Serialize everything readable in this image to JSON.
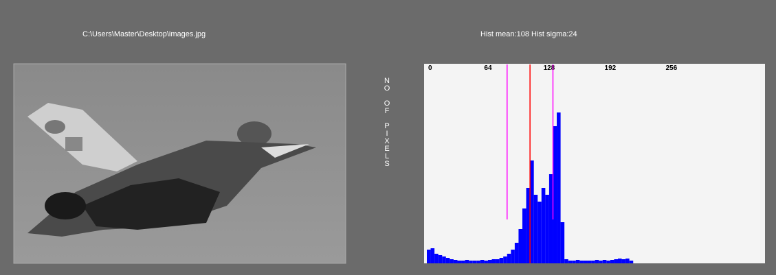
{
  "file_path": "C:\\Users\\Master\\Desktop\\images.jpg",
  "stats": {
    "mean_label": "Hist mean:",
    "mean": 108,
    "sigma_label": "Hist sigma:",
    "sigma": 24
  },
  "y_axis_label": "NO OF PIXELS",
  "histogram": {
    "type": "histogram",
    "xlim": [
      0,
      256
    ],
    "xticks": [
      0,
      64,
      128,
      192,
      256
    ],
    "ylim": [
      0,
      290
    ],
    "bin_width": 4,
    "counts": [
      20,
      22,
      14,
      12,
      10,
      8,
      6,
      5,
      4,
      4,
      5,
      4,
      4,
      4,
      5,
      4,
      5,
      6,
      6,
      8,
      10,
      14,
      20,
      30,
      50,
      80,
      110,
      150,
      100,
      90,
      110,
      100,
      130,
      200,
      220,
      60,
      6,
      4,
      4,
      5,
      4,
      4,
      4,
      4,
      5,
      4,
      5,
      4,
      5,
      6,
      7,
      6,
      7,
      4
    ],
    "bar_color": "#0000ff",
    "mean_color": "#ff0000",
    "sigma_color": "#ff00ff"
  }
}
